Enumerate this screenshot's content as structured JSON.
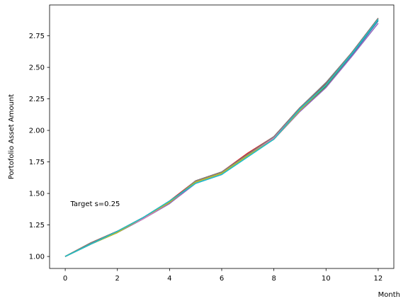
{
  "chart_data": {
    "type": "line",
    "title": "",
    "xlabel": "Month",
    "ylabel": "Portofolio Asset Amount",
    "xlim": [
      -0.6,
      12.6
    ],
    "ylim": [
      0.905,
      2.995
    ],
    "xticks": [
      0,
      2,
      4,
      6,
      8,
      10,
      12
    ],
    "xtick_labels": [
      "0",
      "2",
      "4",
      "6",
      "8",
      "10",
      "12"
    ],
    "yticks": [
      1.0,
      1.25,
      1.5,
      1.75,
      2.0,
      2.25,
      2.5,
      2.75
    ],
    "ytick_labels": [
      "1.00",
      "1.25",
      "1.50",
      "1.75",
      "2.00",
      "2.25",
      "2.50",
      "2.75"
    ],
    "grid": false,
    "legend": "none",
    "annotation": {
      "text": "Target s=0.25",
      "x": 0.2,
      "y": 1.4
    },
    "x": [
      0,
      1,
      2,
      3,
      4,
      5,
      6,
      7,
      8,
      9,
      10,
      11,
      12
    ],
    "series": [
      {
        "color": "#1f77b4",
        "values": [
          1.0,
          1.1,
          1.19,
          1.3,
          1.43,
          1.59,
          1.66,
          1.81,
          1.94,
          2.16,
          2.35,
          2.6,
          2.87
        ]
      },
      {
        "color": "#ff7f0e",
        "values": [
          1.0,
          1.11,
          1.2,
          1.31,
          1.43,
          1.6,
          1.67,
          1.81,
          1.95,
          2.17,
          2.36,
          2.61,
          2.88
        ]
      },
      {
        "color": "#2ca02c",
        "values": [
          1.0,
          1.1,
          1.19,
          1.3,
          1.42,
          1.59,
          1.66,
          1.8,
          1.94,
          2.16,
          2.35,
          2.61,
          2.88
        ]
      },
      {
        "color": "#d62728",
        "values": [
          1.0,
          1.11,
          1.2,
          1.31,
          1.44,
          1.6,
          1.67,
          1.82,
          1.95,
          2.18,
          2.37,
          2.62,
          2.89
        ]
      },
      {
        "color": "#9467bd",
        "values": [
          1.0,
          1.1,
          1.19,
          1.3,
          1.42,
          1.58,
          1.65,
          1.8,
          1.93,
          2.15,
          2.34,
          2.59,
          2.85
        ]
      },
      {
        "color": "#8c564b",
        "values": [
          1.0,
          1.11,
          1.2,
          1.31,
          1.43,
          1.6,
          1.67,
          1.81,
          1.95,
          2.18,
          2.37,
          2.62,
          2.89
        ]
      },
      {
        "color": "#e377c2",
        "values": [
          1.0,
          1.1,
          1.2,
          1.3,
          1.43,
          1.59,
          1.66,
          1.81,
          1.94,
          2.17,
          2.36,
          2.61,
          2.88
        ]
      },
      {
        "color": "#7f7f7f",
        "values": [
          1.0,
          1.11,
          1.2,
          1.31,
          1.43,
          1.6,
          1.67,
          1.81,
          1.95,
          2.18,
          2.38,
          2.62,
          2.89
        ]
      },
      {
        "color": "#bcbd22",
        "values": [
          1.0,
          1.1,
          1.19,
          1.31,
          1.43,
          1.59,
          1.66,
          1.8,
          1.93,
          2.16,
          2.36,
          2.61,
          2.88
        ]
      },
      {
        "color": "#17becf",
        "values": [
          1.0,
          1.1,
          1.2,
          1.31,
          1.44,
          1.58,
          1.65,
          1.79,
          1.93,
          2.17,
          2.36,
          2.61,
          2.88
        ]
      }
    ]
  }
}
